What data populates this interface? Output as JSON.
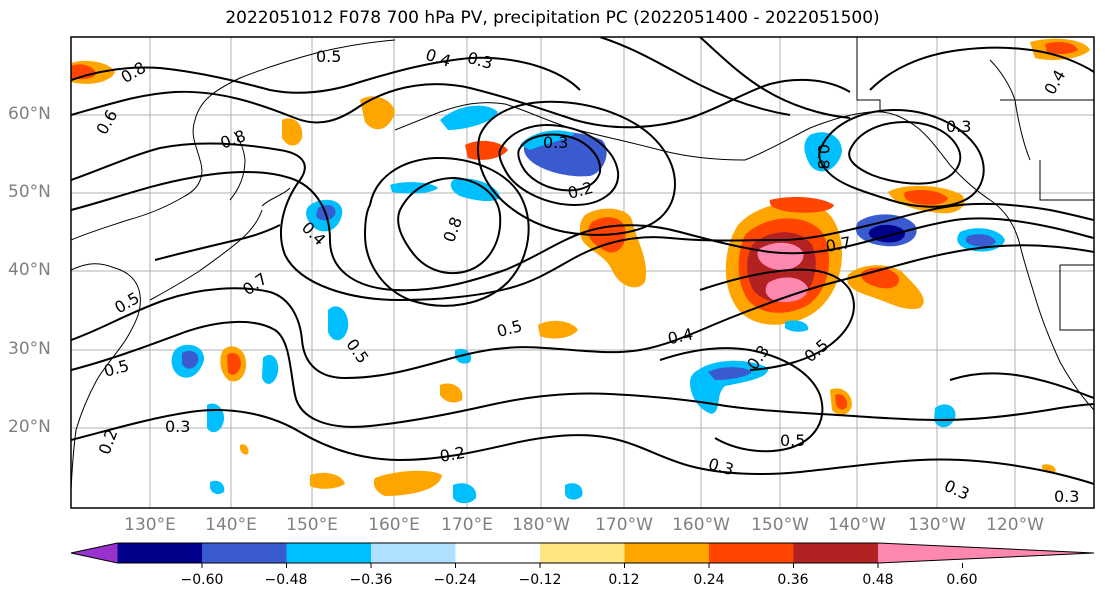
{
  "title": "2022051012 F078 700 hPa PV, precipitation PC (2022051400 - 2022051500)",
  "lat_labels": [
    "60°N",
    "50°N",
    "40°N",
    "30°N",
    "20°N"
  ],
  "lon_labels": [
    "130°E",
    "140°E",
    "150°E",
    "160°E",
    "170°E",
    "180°W",
    "170°W",
    "160°W",
    "150°W",
    "140°W",
    "130°W",
    "120°W"
  ],
  "colorbar": {
    "tick_labels": [
      "−0.60",
      "−0.48",
      "−0.36",
      "−0.24",
      "−0.12",
      "0.12",
      "0.24",
      "0.36",
      "0.48",
      "0.60"
    ],
    "colors": [
      "#9932cc",
      "#00008b",
      "#3a5bcf",
      "#00bfff",
      "#b0e0ff",
      "#ffffff",
      "#ffe680",
      "#ffa500",
      "#ff4500",
      "#b22222",
      "#ff88b0"
    ]
  },
  "contour_labels": [
    "0.5",
    "0.4",
    "0.3",
    "0.8",
    "0.6",
    "0.8",
    "0.3",
    "0.2",
    "0.8",
    "0.4",
    "0.5",
    "0.5",
    "0.7",
    "0.3",
    "0.2",
    "0.5",
    "0.4",
    "0.3",
    "0.5",
    "0.7",
    "0.5",
    "0.3",
    "0.2",
    "0.3",
    "0.3",
    "0.5",
    "0.4",
    "0.8",
    "0.3"
  ]
}
